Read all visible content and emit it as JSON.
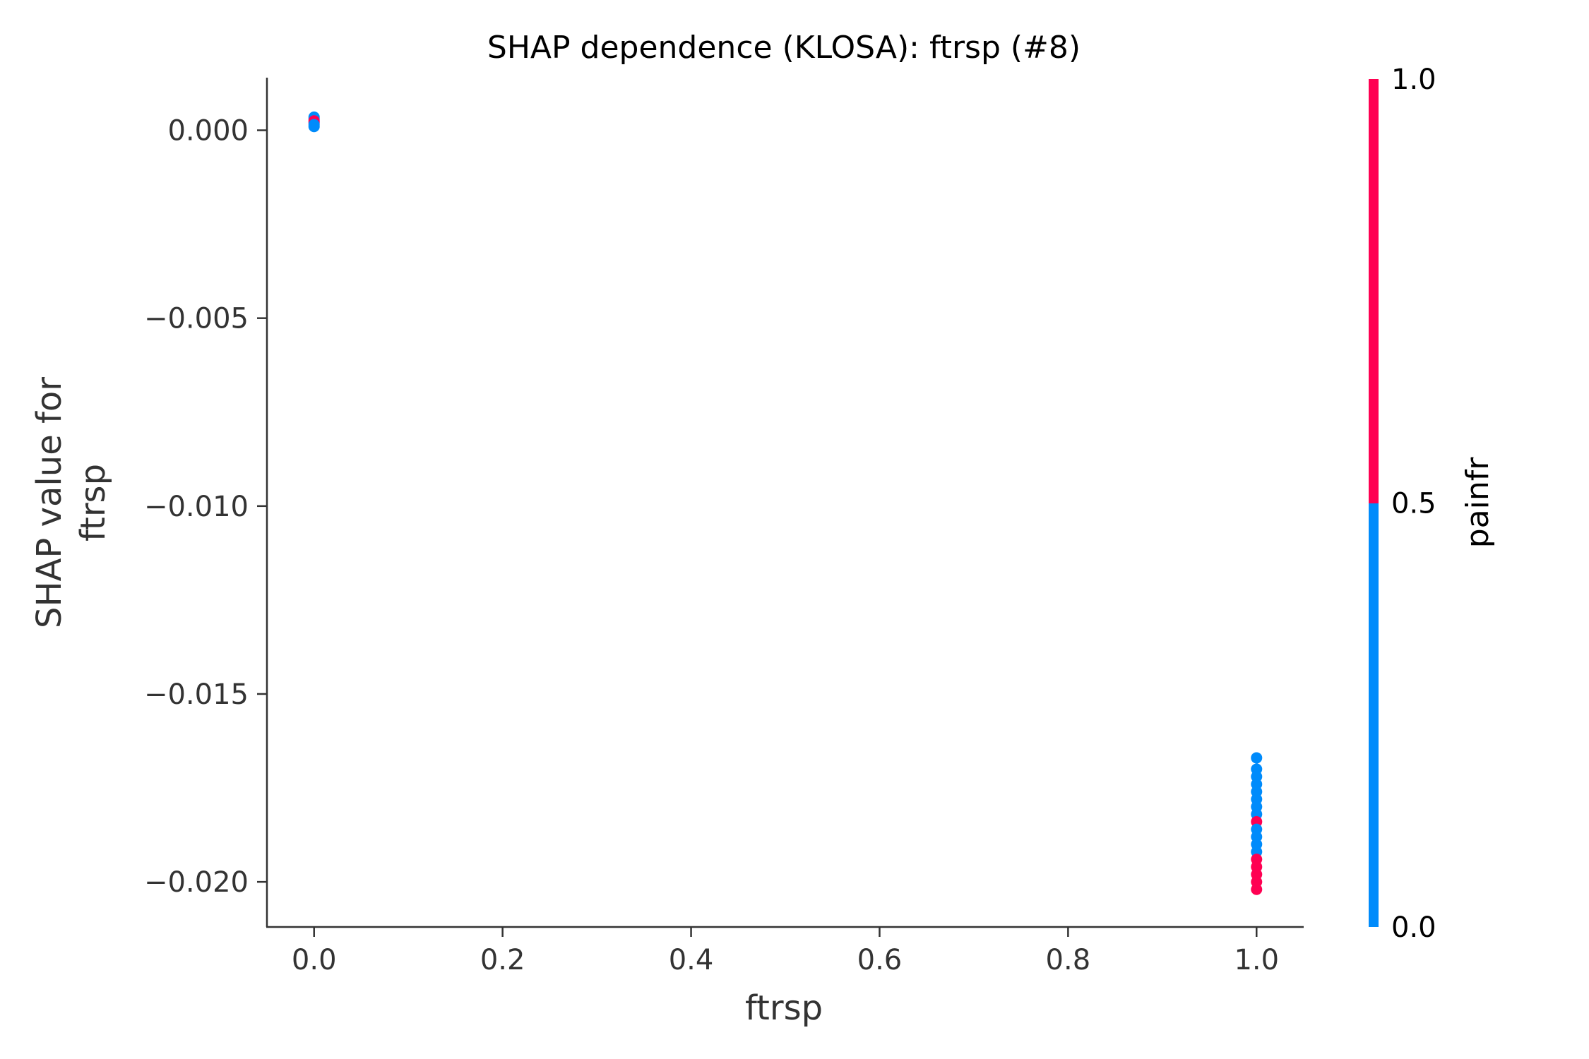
{
  "chart_data": {
    "type": "scatter",
    "title": "SHAP dependence (KLOSA): ftrsp (#8)",
    "xlabel": "ftrsp",
    "ylabel_lines": [
      "SHAP value for",
      "ftrsp"
    ],
    "xlim": [
      -0.05,
      1.05
    ],
    "ylim": [
      -0.0212,
      0.0014
    ],
    "xticks": [
      0.0,
      0.2,
      0.4,
      0.6,
      0.8,
      1.0
    ],
    "xtick_labels": [
      "0.0",
      "0.2",
      "0.4",
      "0.6",
      "0.8",
      "1.0"
    ],
    "yticks": [
      0.0,
      -0.005,
      -0.01,
      -0.015,
      -0.02
    ],
    "ytick_labels": [
      "0.000",
      "−0.005",
      "−0.010",
      "−0.015",
      "−0.020"
    ],
    "grid": false,
    "colorbar": {
      "label": "painfr",
      "range": [
        0,
        1
      ],
      "ticks": [
        0.0,
        0.5,
        1.0
      ],
      "tick_labels": [
        "0.0",
        "0.5",
        "1.0"
      ],
      "color_low": "#008bfb",
      "color_high": "#ff0052"
    },
    "points": [
      {
        "x": 0.0,
        "y": 0.00035,
        "c": 0
      },
      {
        "x": 0.0,
        "y": 0.0003,
        "c": 0
      },
      {
        "x": 0.0,
        "y": 0.00025,
        "c": 1
      },
      {
        "x": 0.0,
        "y": 0.0002,
        "c": 1
      },
      {
        "x": 0.0,
        "y": 0.00015,
        "c": 0
      },
      {
        "x": 0.0,
        "y": 0.0001,
        "c": 0
      },
      {
        "x": 1.0,
        "y": -0.0167,
        "c": 0
      },
      {
        "x": 1.0,
        "y": -0.017,
        "c": 0
      },
      {
        "x": 1.0,
        "y": -0.0172,
        "c": 0
      },
      {
        "x": 1.0,
        "y": -0.0174,
        "c": 0
      },
      {
        "x": 1.0,
        "y": -0.0176,
        "c": 0
      },
      {
        "x": 1.0,
        "y": -0.0178,
        "c": 0
      },
      {
        "x": 1.0,
        "y": -0.018,
        "c": 0
      },
      {
        "x": 1.0,
        "y": -0.0182,
        "c": 0
      },
      {
        "x": 1.0,
        "y": -0.0184,
        "c": 1
      },
      {
        "x": 1.0,
        "y": -0.0186,
        "c": 0
      },
      {
        "x": 1.0,
        "y": -0.0188,
        "c": 0
      },
      {
        "x": 1.0,
        "y": -0.019,
        "c": 0
      },
      {
        "x": 1.0,
        "y": -0.0192,
        "c": 0
      },
      {
        "x": 1.0,
        "y": -0.0194,
        "c": 1
      },
      {
        "x": 1.0,
        "y": -0.0196,
        "c": 1
      },
      {
        "x": 1.0,
        "y": -0.0198,
        "c": 1
      },
      {
        "x": 1.0,
        "y": -0.02,
        "c": 1
      },
      {
        "x": 1.0,
        "y": -0.0202,
        "c": 1
      }
    ]
  }
}
